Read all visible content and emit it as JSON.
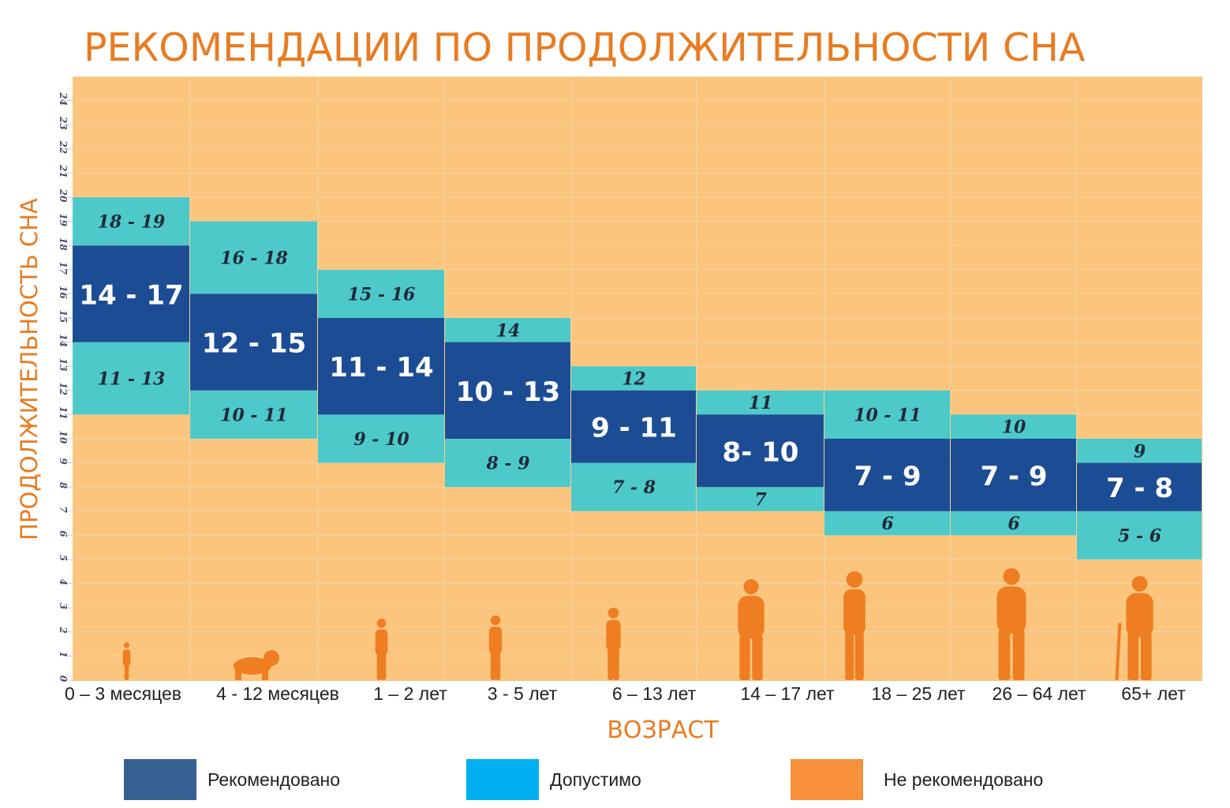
{
  "title": "РЕКОМЕНДАЦИИ ПО ПРОДОЛЖИТЕЛЬНОСТИ СНА",
  "ylabel": "ПРОДОЛЖИТЕЛЬНОСТЬ СНА",
  "xlabel": "ВОЗРАСТ",
  "colors": {
    "background": "#fbc57d",
    "recommended": "#1c4d94",
    "acceptable": "#4ec9c9",
    "not_recommended_legend": "#f7913c",
    "legend_recommended": "#366092",
    "legend_acceptable": "#00b0f0",
    "silhouette": "#ef7d22",
    "accent": "#e87c22"
  },
  "legend": [
    {
      "label": "Рекомендовано",
      "color": "#366092"
    },
    {
      "label": "Допустимо",
      "color": "#00b0f0"
    },
    {
      "label": "Не рекомендовано",
      "color": "#f7913c"
    }
  ],
  "chart_data": {
    "type": "bar",
    "title": "РЕКОМЕНДАЦИИ ПО ПРОДОЛЖИТЕЛЬНОСТИ СНА",
    "xlabel": "ВОЗРАСТ",
    "ylabel": "ПРОДОЛЖИТЕЛЬНОСТЬ СНА",
    "ylim": [
      0,
      24
    ],
    "yticks": [
      0,
      1,
      2,
      3,
      4,
      5,
      6,
      7,
      8,
      9,
      10,
      11,
      12,
      13,
      14,
      15,
      16,
      17,
      18,
      19,
      20,
      21,
      22,
      23,
      24
    ],
    "grid": true,
    "legend_position": "bottom",
    "categories": [
      "0 – 3 месяцев",
      "4 - 12 месяцев",
      "1 – 2 лет",
      "3 - 5 лет",
      "6 – 13 лет",
      "14 – 17 лет",
      "18 – 25 лет",
      "26 – 64 лет",
      "65+ лет"
    ],
    "groups": [
      {
        "category": "0 – 3 месяцев",
        "silhouette": "baby-standing",
        "recommended": {
          "range": [
            14,
            18
          ],
          "label": "14 - 17"
        },
        "acceptable_high": {
          "range": [
            18,
            20
          ],
          "label": "18 - 19"
        },
        "acceptable_low": {
          "range": [
            11,
            14
          ],
          "label": "11 - 13"
        }
      },
      {
        "category": "4 - 12 месяцев",
        "silhouette": "baby-crawling",
        "recommended": {
          "range": [
            12,
            16
          ],
          "label": "12 - 15"
        },
        "acceptable_high": {
          "range": [
            16,
            19
          ],
          "label": "16 - 18"
        },
        "acceptable_low": {
          "range": [
            10,
            12
          ],
          "label": "10 - 11"
        }
      },
      {
        "category": "1 – 2 лет",
        "silhouette": "toddler",
        "recommended": {
          "range": [
            11,
            15
          ],
          "label": "11 - 14"
        },
        "acceptable_high": {
          "range": [
            15,
            17
          ],
          "label": "15 - 16"
        },
        "acceptable_low": {
          "range": [
            9,
            11
          ],
          "label": "9 - 10"
        }
      },
      {
        "category": "3 - 5 лет",
        "silhouette": "child",
        "recommended": {
          "range": [
            10,
            14
          ],
          "label": "10 - 13"
        },
        "acceptable_high": {
          "range": [
            14,
            15
          ],
          "label": "14"
        },
        "acceptable_low": {
          "range": [
            8,
            10
          ],
          "label": "8 - 9"
        }
      },
      {
        "category": "6 – 13 лет",
        "silhouette": "child-playing",
        "recommended": {
          "range": [
            9,
            12
          ],
          "label": "9 - 11"
        },
        "acceptable_high": {
          "range": [
            12,
            13
          ],
          "label": "12"
        },
        "acceptable_low": {
          "range": [
            7,
            9
          ],
          "label": "7 - 8"
        }
      },
      {
        "category": "14 – 17 лет",
        "silhouette": "teen",
        "recommended": {
          "range": [
            8,
            11
          ],
          "label": "8- 10"
        },
        "acceptable_high": {
          "range": [
            11,
            12
          ],
          "label": "11"
        },
        "acceptable_low": {
          "range": [
            7,
            8
          ],
          "label": "7"
        }
      },
      {
        "category": "18 – 25 лет",
        "silhouette": "young-adult",
        "recommended": {
          "range": [
            7,
            10
          ],
          "label": "7 - 9"
        },
        "acceptable_high": {
          "range": [
            10,
            12
          ],
          "label": "10 - 11"
        },
        "acceptable_low": {
          "range": [
            6,
            7
          ],
          "label": "6"
        }
      },
      {
        "category": "26 – 64 лет",
        "silhouette": "adult",
        "recommended": {
          "range": [
            7,
            10
          ],
          "label": "7 - 9"
        },
        "acceptable_high": {
          "range": [
            10,
            11
          ],
          "label": "10"
        },
        "acceptable_low": {
          "range": [
            6,
            7
          ],
          "label": "6"
        }
      },
      {
        "category": "65+ лет",
        "silhouette": "elder-with-cane",
        "recommended": {
          "range": [
            7,
            9
          ],
          "label": "7 - 8"
        },
        "acceptable_high": {
          "range": [
            9,
            10
          ],
          "label": "9"
        },
        "acceptable_low": {
          "range": [
            5,
            7
          ],
          "label": "5 - 6"
        }
      }
    ]
  }
}
